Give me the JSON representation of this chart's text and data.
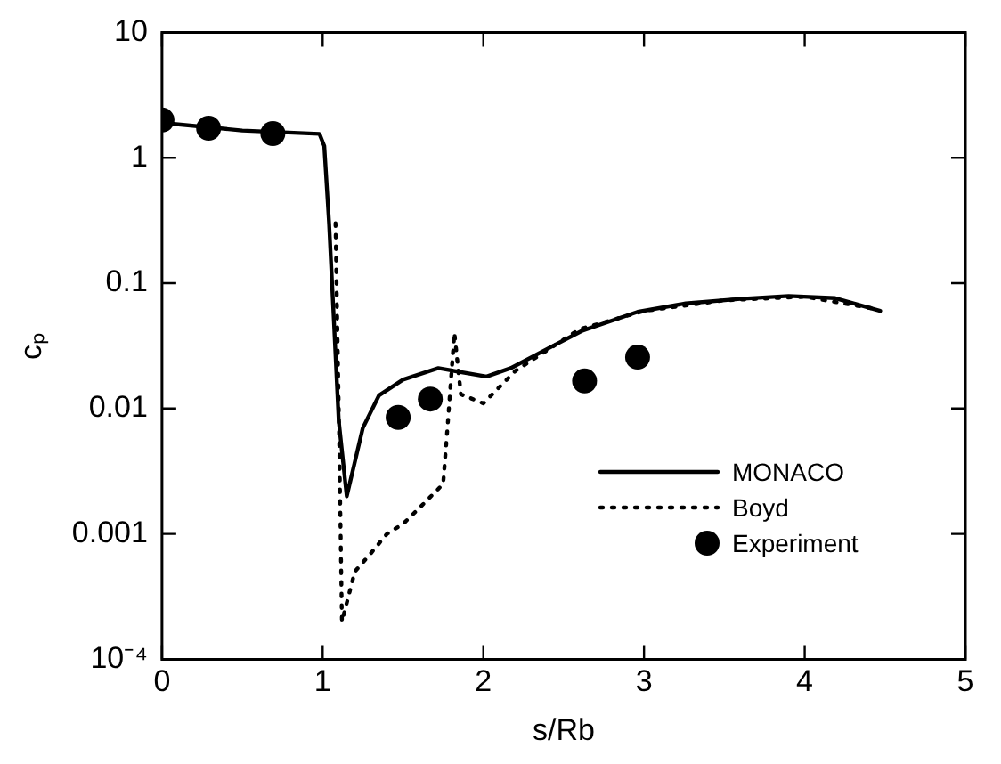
{
  "chart_data": {
    "type": "line",
    "xlabel": "s/Rb",
    "ylabel": "cₚ",
    "log": "y",
    "xlim": [
      0,
      5
    ],
    "xticks": [
      0,
      1,
      2,
      3,
      4,
      5
    ],
    "ylim": [
      0.0001,
      10
    ],
    "yticks": [
      {
        "value": 0.0001,
        "label": "10⁻⁴"
      },
      0.001,
      0.01,
      0.1,
      1,
      10
    ],
    "grid": false,
    "legend": "bottom right",
    "series": [
      {
        "name": "MONACO",
        "type": "line",
        "color": "#000000",
        "line_style": "solid",
        "marker": "none",
        "x": [
          0,
          0.5,
          0.98,
          1.01,
          1.04,
          1.07,
          1.1,
          1.15,
          1.25,
          1.35,
          1.5,
          1.72,
          2.02,
          2.17,
          2.4,
          2.62,
          2.96,
          3.26,
          3.6,
          3.9,
          4.19,
          4.47
        ],
        "values": [
          1.9,
          1.65,
          1.55,
          1.24,
          0.3,
          0.05,
          0.008,
          0.002,
          0.007,
          0.0127,
          0.017,
          0.021,
          0.018,
          0.021,
          0.03,
          0.042,
          0.059,
          0.069,
          0.075,
          0.079,
          0.076,
          0.06
        ]
      },
      {
        "name": "Boyd",
        "type": "line",
        "color": "#000000",
        "line_style": "dotted",
        "marker": "none",
        "x": [
          1.08,
          1.1,
          1.12,
          1.2,
          1.3,
          1.4,
          1.5,
          1.6,
          1.75,
          1.78,
          1.82,
          1.86,
          2.0,
          2.2,
          2.6,
          3.0,
          3.5,
          4.0,
          4.45
        ],
        "values": [
          0.3,
          0.01,
          0.0002,
          0.0005,
          0.0007,
          0.001,
          0.0012,
          0.0016,
          0.0025,
          0.008,
          0.04,
          0.013,
          0.011,
          0.02,
          0.043,
          0.06,
          0.073,
          0.078,
          0.062
        ]
      },
      {
        "name": "Experiment",
        "type": "scatter",
        "color": "#000000",
        "marker": "circle",
        "x": [
          0,
          0.29,
          0.69,
          1.47,
          1.67,
          2.63,
          2.96
        ],
        "values": [
          2.0,
          1.72,
          1.56,
          0.0085,
          0.0119,
          0.0166,
          0.0257
        ]
      }
    ]
  }
}
